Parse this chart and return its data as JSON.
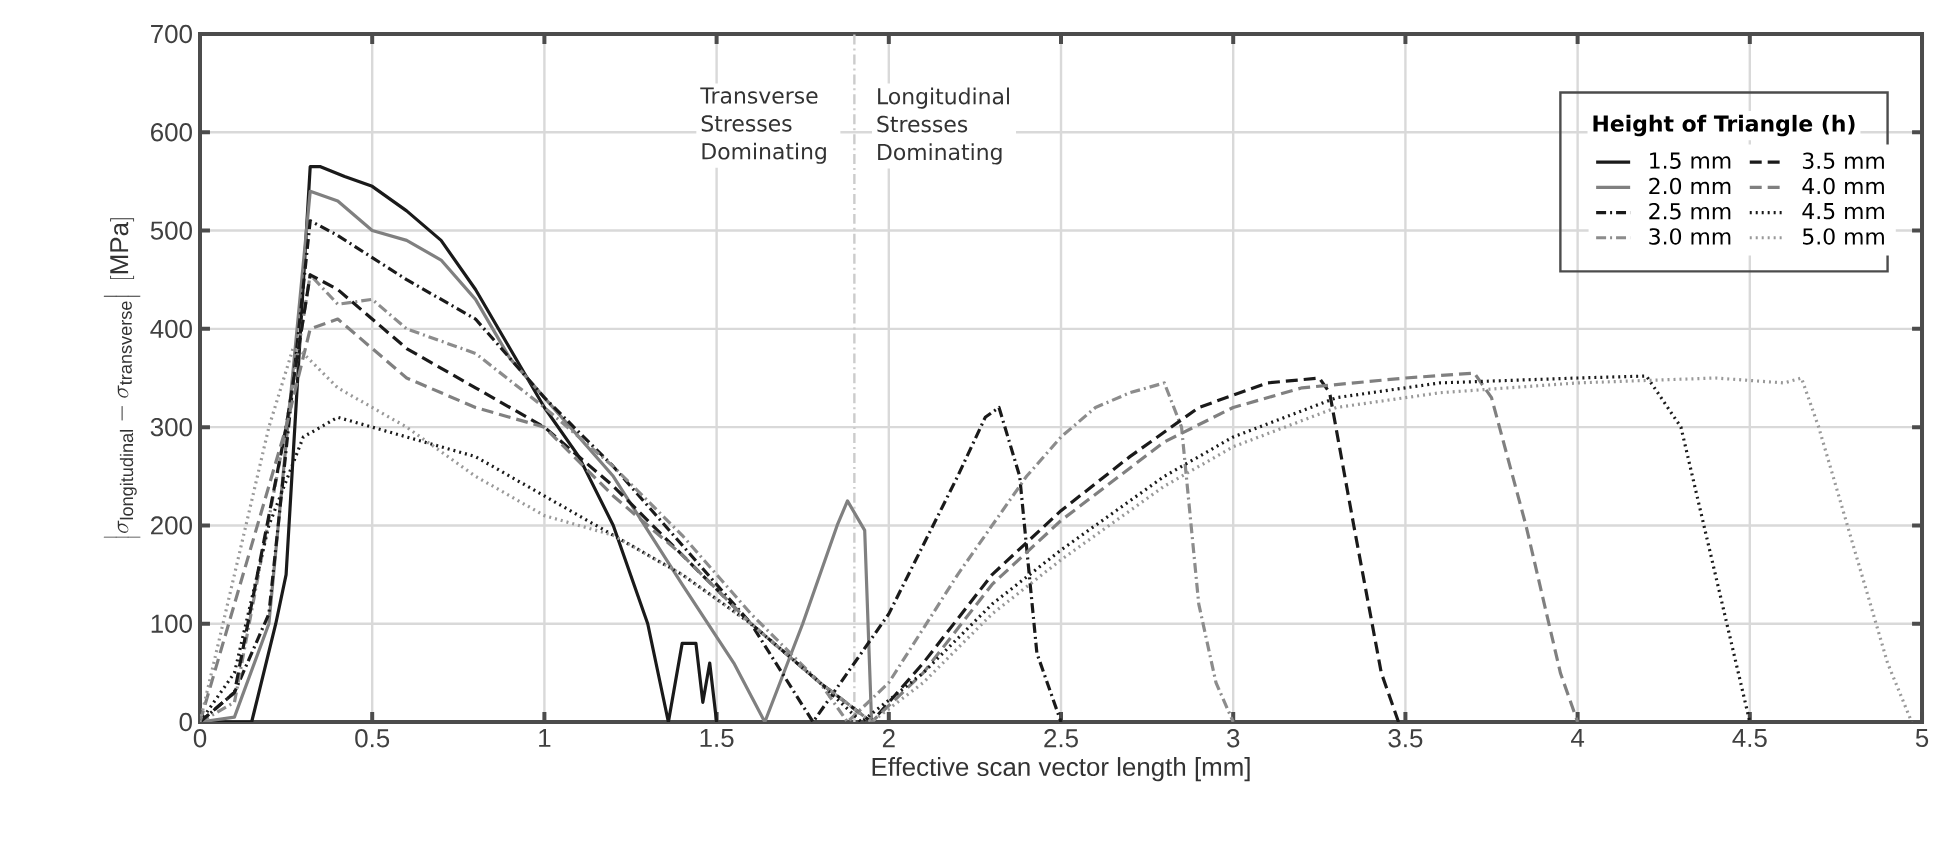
{
  "chart_data": {
    "type": "line",
    "xlabel": "Effective scan vector length [mm]",
    "ylabel": "\\left|\\sigma_{\\mathrm{longitudinal}} - \\sigma_{\\mathrm{transverse}}\\right| \\mathrm{\\ [MPa]}",
    "legend_title": "Height of Triangle (h)",
    "xlim": [
      0,
      5
    ],
    "xticks": [
      0,
      0.5,
      1,
      1.5,
      2,
      2.5,
      3,
      3.5,
      4,
      4.5,
      5
    ],
    "ylim": [
      0,
      700
    ],
    "yticks": [
      0,
      100,
      200,
      300,
      400,
      500,
      600,
      700
    ],
    "grid": true,
    "legend": "top right",
    "marker": "none",
    "annotations": [
      "Transverse Stresses Dominating",
      "Longitudinal Stresses Dominating"
    ],
    "ref_lines": [
      {
        "axis": "x",
        "value": 1.9,
        "color": "#cccccc",
        "line_style": "dashdot"
      }
    ],
    "series": [
      {
        "name": "1.5 mm",
        "color": "#1a1a1a",
        "line_style": "solid",
        "x": [
          0,
          0.15,
          0.22,
          0.25,
          0.32,
          0.35,
          0.42,
          0.5,
          0.6,
          0.7,
          0.8,
          0.9,
          1.0,
          1.1,
          1.2,
          1.3,
          1.36,
          1.4,
          1.44,
          1.46,
          1.48,
          1.5
        ],
        "values": [
          0,
          0,
          100,
          150,
          565,
          565,
          555,
          545,
          520,
          490,
          440,
          380,
          320,
          270,
          200,
          100,
          0,
          80,
          80,
          20,
          60,
          0
        ]
      },
      {
        "name": "2.0 mm",
        "color": "#808080",
        "line_style": "solid",
        "x": [
          0,
          0.1,
          0.2,
          0.32,
          0.4,
          0.5,
          0.6,
          0.7,
          0.8,
          0.9,
          1.0,
          1.2,
          1.4,
          1.55,
          1.64,
          1.75,
          1.85,
          1.88,
          1.93,
          1.95
        ],
        "values": [
          0,
          5,
          100,
          540,
          530,
          500,
          490,
          470,
          430,
          370,
          330,
          250,
          140,
          60,
          0,
          100,
          200,
          225,
          195,
          0
        ]
      },
      {
        "name": "2.5 mm",
        "color": "#1a1a1a",
        "line_style": "dashdot",
        "x": [
          0,
          0.1,
          0.2,
          0.32,
          0.4,
          0.6,
          0.8,
          1.0,
          1.2,
          1.4,
          1.6,
          1.78,
          2.0,
          2.2,
          2.28,
          2.32,
          2.38,
          2.43,
          2.5
        ],
        "values": [
          0,
          30,
          110,
          510,
          495,
          450,
          410,
          330,
          260,
          180,
          100,
          0,
          110,
          250,
          310,
          320,
          250,
          70,
          0
        ]
      },
      {
        "name": "3.0 mm",
        "color": "#8c8c8c",
        "line_style": "dashdot",
        "x": [
          0,
          0.1,
          0.25,
          0.32,
          0.4,
          0.5,
          0.6,
          0.8,
          1.0,
          1.2,
          1.4,
          1.6,
          1.8,
          1.88,
          2.0,
          2.2,
          2.4,
          2.5,
          2.6,
          2.7,
          2.8,
          2.85,
          2.9,
          2.95,
          3.0
        ],
        "values": [
          0,
          20,
          300,
          455,
          425,
          430,
          400,
          375,
          320,
          260,
          190,
          110,
          40,
          0,
          40,
          150,
          250,
          290,
          320,
          335,
          345,
          300,
          120,
          40,
          0
        ]
      },
      {
        "name": "3.5 mm",
        "color": "#1a1a1a",
        "line_style": "dashed",
        "x": [
          0,
          0.1,
          0.25,
          0.32,
          0.4,
          0.6,
          0.8,
          1.0,
          1.2,
          1.4,
          1.6,
          1.8,
          1.95,
          2.1,
          2.3,
          2.5,
          2.7,
          2.9,
          3.1,
          3.25,
          3.28,
          3.35,
          3.43,
          3.48
        ],
        "values": [
          0,
          30,
          300,
          455,
          440,
          380,
          340,
          300,
          240,
          170,
          100,
          40,
          0,
          60,
          150,
          215,
          270,
          320,
          345,
          350,
          335,
          200,
          50,
          0
        ]
      },
      {
        "name": "4.0 mm",
        "color": "#808080",
        "line_style": "dashed",
        "x": [
          0,
          0.25,
          0.32,
          0.4,
          0.6,
          0.8,
          1.0,
          1.2,
          1.4,
          1.6,
          1.8,
          1.95,
          2.1,
          2.3,
          2.5,
          2.8,
          3.0,
          3.2,
          3.5,
          3.7,
          3.75,
          3.85,
          3.95,
          4.0
        ],
        "values": [
          0,
          300,
          400,
          410,
          350,
          320,
          300,
          230,
          170,
          100,
          40,
          0,
          50,
          140,
          205,
          285,
          320,
          340,
          350,
          355,
          330,
          200,
          50,
          0
        ]
      },
      {
        "name": "4.5 mm",
        "color": "#1a1a1a",
        "line_style": "dotted",
        "x": [
          0,
          0.1,
          0.2,
          0.3,
          0.4,
          0.5,
          0.8,
          1.0,
          1.2,
          1.4,
          1.6,
          1.8,
          1.92,
          2.1,
          2.3,
          2.5,
          2.8,
          3.0,
          3.3,
          3.6,
          4.0,
          4.2,
          4.3,
          4.4,
          4.5
        ],
        "values": [
          0,
          50,
          200,
          290,
          310,
          300,
          270,
          230,
          190,
          150,
          100,
          40,
          0,
          50,
          120,
          175,
          250,
          290,
          330,
          345,
          350,
          352,
          300,
          150,
          0
        ]
      },
      {
        "name": "5.0 mm",
        "color": "#999999",
        "line_style": "dotted",
        "x": [
          0,
          0.1,
          0.2,
          0.27,
          0.3,
          0.4,
          0.6,
          0.8,
          1.0,
          1.2,
          1.4,
          1.6,
          1.8,
          1.95,
          2.1,
          2.3,
          2.5,
          2.8,
          3.0,
          3.3,
          3.6,
          4.0,
          4.4,
          4.6,
          4.65,
          4.7,
          4.8,
          4.9,
          4.97
        ],
        "values": [
          0,
          150,
          300,
          380,
          375,
          340,
          300,
          250,
          210,
          190,
          150,
          100,
          40,
          0,
          40,
          110,
          165,
          240,
          280,
          320,
          335,
          345,
          350,
          345,
          350,
          300,
          180,
          60,
          0
        ]
      }
    ]
  }
}
